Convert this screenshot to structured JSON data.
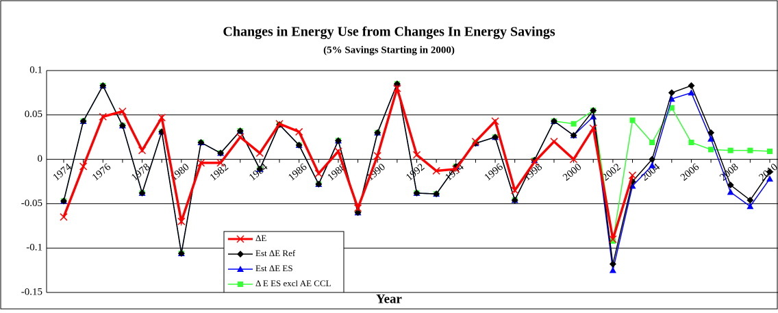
{
  "chart_data": {
    "type": "line",
    "title": "Changes in Energy Use from Changes In Energy Savings",
    "subtitle": "(5% Savings Starting in 2000)",
    "xlabel": "Year",
    "categories": [
      "1974",
      null,
      "1976",
      null,
      "1978",
      null,
      "1980",
      null,
      "1982",
      null,
      "1984",
      null,
      "1986",
      null,
      "1988",
      null,
      "1990",
      null,
      "1992",
      null,
      "1994",
      null,
      "1996",
      null,
      "1998",
      null,
      "2000",
      null,
      "2002",
      null,
      "2004",
      null,
      "2006",
      null,
      "2008",
      null,
      "2010"
    ],
    "ylim": [
      -0.15,
      0.1
    ],
    "yticks": [
      -0.15,
      -0.1,
      -0.05,
      0,
      0.05,
      0.1
    ],
    "grid": true,
    "series": [
      {
        "name": "ΔE",
        "color": "#ff0000",
        "marker": "x",
        "values": [
          -0.065,
          -0.008,
          0.048,
          0.054,
          0.01,
          0.047,
          -0.07,
          -0.004,
          -0.004,
          0.025,
          0.007,
          0.04,
          0.031,
          -0.016,
          0.009,
          -0.055,
          0.004,
          0.08,
          0.005,
          -0.013,
          -0.011,
          0.02,
          0.043,
          -0.035,
          -0.003,
          0.02,
          0,
          0.035,
          -0.09,
          -0.018,
          null,
          null,
          null,
          null,
          null,
          null,
          null
        ]
      },
      {
        "name": "Est ΔE Ref",
        "color": "#000000",
        "marker": "diamond",
        "values": [
          -0.047,
          0.043,
          0.083,
          0.038,
          -0.038,
          0.031,
          -0.106,
          0.019,
          0.007,
          0.032,
          -0.011,
          0.039,
          0.016,
          -0.028,
          0.021,
          -0.06,
          0.03,
          0.085,
          -0.038,
          -0.039,
          -0.008,
          0.018,
          0.025,
          -0.046,
          -0.001,
          0.043,
          0.027,
          0.055,
          -0.118,
          -0.025,
          0,
          0.075,
          0.083,
          0.03,
          -0.029,
          -0.046,
          -0.014
        ]
      },
      {
        "name": "Est ΔE ES",
        "color": "#0000ff",
        "marker": "triangle",
        "values": [
          -0.047,
          0.043,
          0.083,
          0.038,
          -0.038,
          0.031,
          -0.106,
          0.019,
          0.007,
          0.032,
          -0.011,
          0.039,
          0.016,
          -0.028,
          0.021,
          -0.06,
          0.03,
          0.085,
          -0.038,
          -0.039,
          -0.008,
          0.018,
          0.025,
          -0.046,
          -0.001,
          0.043,
          0.027,
          0.048,
          -0.125,
          -0.03,
          -0.007,
          0.068,
          0.075,
          0.023,
          -0.037,
          -0.053,
          -0.022
        ]
      },
      {
        "name": "Δ E ES excl AE CCL",
        "color": "#33ff33",
        "marker": "square",
        "values": [
          -0.047,
          0.043,
          0.083,
          0.038,
          -0.038,
          0.031,
          -0.106,
          0.019,
          0.007,
          0.032,
          -0.011,
          0.039,
          0.016,
          -0.028,
          0.021,
          -0.06,
          0.03,
          0.085,
          -0.038,
          -0.039,
          -0.008,
          0.018,
          0.025,
          -0.046,
          -0.001,
          0.043,
          0.04,
          0.055,
          -0.092,
          0.044,
          0.019,
          0.058,
          0.019,
          0.011,
          0.01,
          0.01,
          0.009
        ]
      }
    ]
  }
}
